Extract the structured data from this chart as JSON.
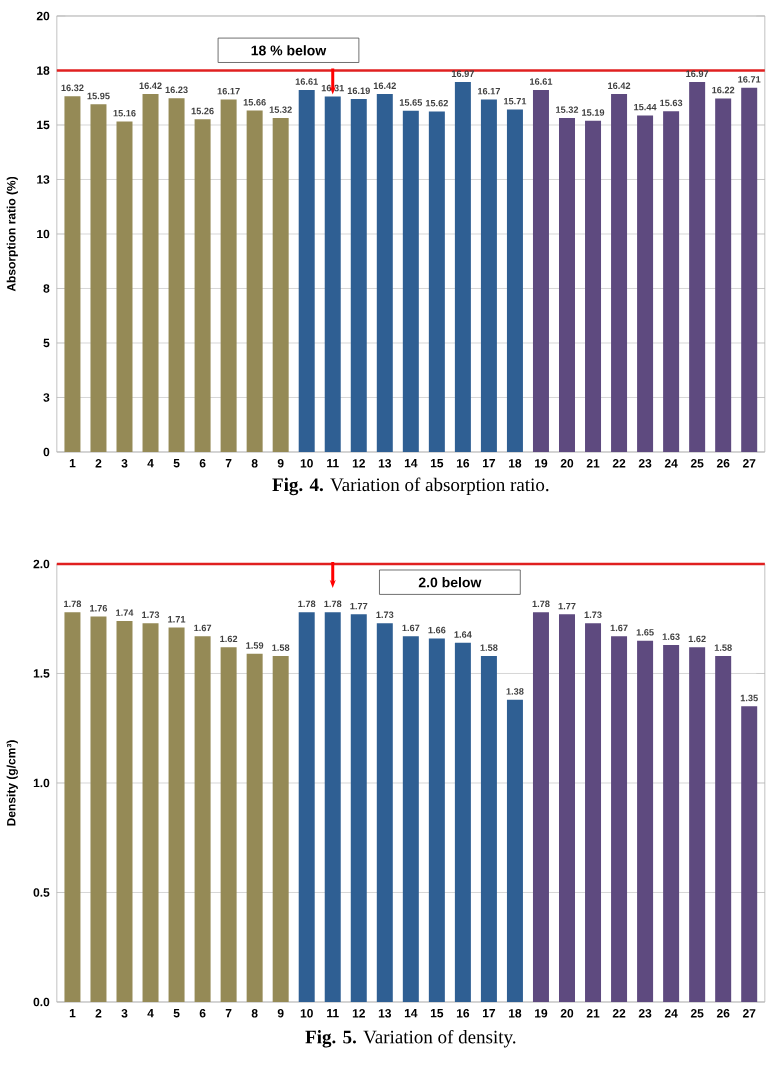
{
  "chart_data": [
    {
      "type": "bar",
      "title": "**Fig. 4.** Variation of absorption ratio.",
      "ylabel": "Absorption ratio (%)",
      "categories": [
        "1",
        "2",
        "3",
        "4",
        "5",
        "6",
        "7",
        "8",
        "9",
        "10",
        "11",
        "12",
        "13",
        "14",
        "15",
        "16",
        "17",
        "18",
        "19",
        "20",
        "21",
        "22",
        "23",
        "24",
        "25",
        "26",
        "27"
      ],
      "values": [
        16.32,
        15.95,
        15.16,
        16.42,
        16.23,
        15.26,
        16.17,
        15.66,
        15.32,
        16.61,
        16.31,
        16.19,
        16.42,
        15.65,
        15.62,
        16.97,
        16.17,
        15.71,
        16.61,
        15.32,
        15.19,
        16.42,
        15.44,
        15.63,
        16.97,
        16.22,
        16.71
      ],
      "colors": [
        "#958a56",
        "#958a56",
        "#958a56",
        "#958a56",
        "#958a56",
        "#958a56",
        "#958a56",
        "#958a56",
        "#958a56",
        "#2f5f93",
        "#2f5f93",
        "#2f5f93",
        "#2f5f93",
        "#2f5f93",
        "#2f5f93",
        "#2f5f93",
        "#2f5f93",
        "#2f5f93",
        "#5e4a7f",
        "#5e4a7f",
        "#5e4a7f",
        "#5e4a7f",
        "#5e4a7f",
        "#5e4a7f",
        "#5e4a7f",
        "#5e4a7f",
        "#5e4a7f"
      ],
      "ylim": [
        0,
        20
      ],
      "yticks": [
        0,
        {
          "value": 2.5,
          "label": "3"
        },
        5,
        {
          "value": 7.5,
          "label": "8"
        },
        10,
        {
          "value": 12.5,
          "label": "13"
        },
        15,
        {
          "value": 17.5,
          "label": "18"
        },
        20
      ],
      "grid": "y",
      "data_labels": true,
      "ref_lines": [
        {
          "axis": "y",
          "value": 17.5,
          "label": "18 % below",
          "color": "#e02020"
        }
      ]
    },
    {
      "type": "bar",
      "title": "**Fig. 5.** Variation of density.",
      "ylabel": "Density (g/cm³)",
      "categories": [
        "1",
        "2",
        "3",
        "4",
        "5",
        "6",
        "7",
        "8",
        "9",
        "10",
        "11",
        "12",
        "13",
        "14",
        "15",
        "16",
        "17",
        "18",
        "19",
        "20",
        "21",
        "22",
        "23",
        "24",
        "25",
        "26",
        "27"
      ],
      "values": [
        1.78,
        1.76,
        1.74,
        1.73,
        1.71,
        1.67,
        1.62,
        1.59,
        1.58,
        1.78,
        1.78,
        1.77,
        1.73,
        1.67,
        1.66,
        1.64,
        1.58,
        1.38,
        1.78,
        1.77,
        1.73,
        1.67,
        1.65,
        1.63,
        1.62,
        1.58,
        1.35
      ],
      "colors": [
        "#958a56",
        "#958a56",
        "#958a56",
        "#958a56",
        "#958a56",
        "#958a56",
        "#958a56",
        "#958a56",
        "#958a56",
        "#2f5f93",
        "#2f5f93",
        "#2f5f93",
        "#2f5f93",
        "#2f5f93",
        "#2f5f93",
        "#2f5f93",
        "#2f5f93",
        "#2f5f93",
        "#5e4a7f",
        "#5e4a7f",
        "#5e4a7f",
        "#5e4a7f",
        "#5e4a7f",
        "#5e4a7f",
        "#5e4a7f",
        "#5e4a7f",
        "#5e4a7f"
      ],
      "ylim": [
        0,
        2
      ],
      "yticks": [
        {
          "value": 0,
          "label": "0.0"
        },
        {
          "value": 0.5,
          "label": "0.5"
        },
        {
          "value": 1,
          "label": "1.0"
        },
        {
          "value": 1.5,
          "label": "1.5"
        },
        {
          "value": 2,
          "label": "2.0"
        }
      ],
      "grid": "y",
      "data_labels": true,
      "ref_lines": [
        {
          "axis": "y",
          "value": 2,
          "label": "2.0 below",
          "color": "#e02020"
        }
      ]
    }
  ]
}
